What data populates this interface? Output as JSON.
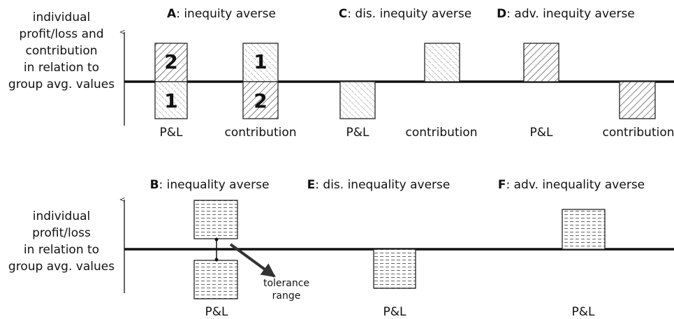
{
  "top": {
    "axis_label": [
      "individual",
      "profit/loss and",
      "contribution",
      "in relation to",
      "group avg. values"
    ],
    "panels": [
      {
        "letter": "A",
        "title": ": inequity averse",
        "labels": [
          "P&L",
          "contribution"
        ],
        "ranks": [
          "2",
          "1",
          "1",
          "2"
        ]
      },
      {
        "letter": "C",
        "title": ": dis.  inequity averse",
        "labels": [
          "P&L",
          "contribution"
        ]
      },
      {
        "letter": "D",
        "title": ": adv. inequity averse",
        "labels": [
          "P&L",
          "contribution"
        ]
      }
    ]
  },
  "bottom": {
    "axis_label": [
      "individual",
      "profit/loss",
      "in relation to",
      "group avg. values"
    ],
    "panels": [
      {
        "letter": "B",
        "title": ": inequality averse",
        "labels": [
          "P&L"
        ],
        "annotation": [
          "tolerance",
          "range"
        ]
      },
      {
        "letter": "E",
        "title": ": dis. inequality averse",
        "labels": [
          "P&L"
        ]
      },
      {
        "letter": "F",
        "title": ": adv. inequality averse",
        "labels": [
          "P&L"
        ]
      }
    ]
  }
}
